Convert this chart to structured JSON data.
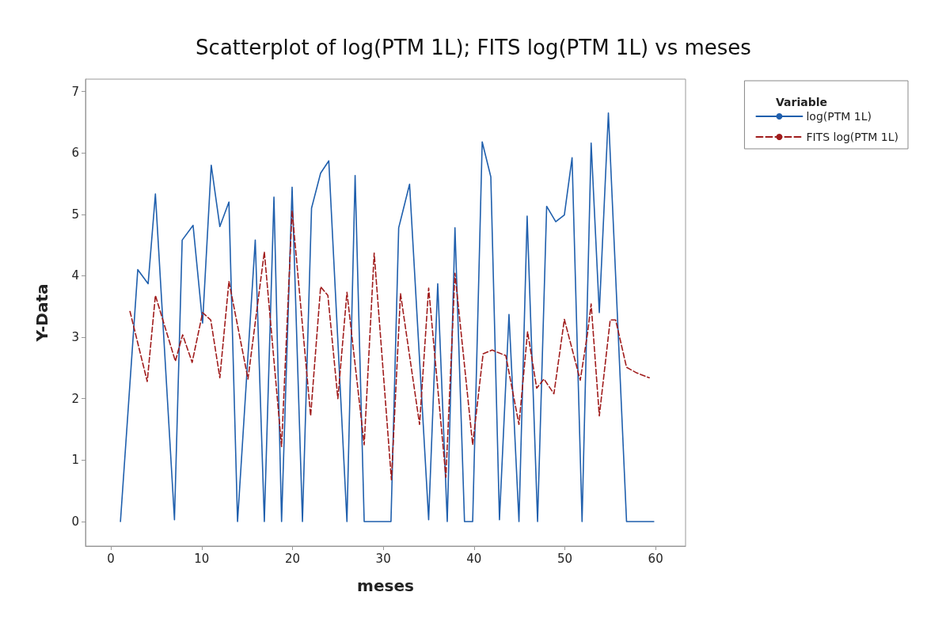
{
  "chart_data": {
    "type": "line",
    "title": "Scatterplot of log(PTM 1L); FITS log(PTM 1L) vs meses",
    "xlabel": "meses",
    "ylabel": "Y-Data",
    "legend_title": "Variable",
    "legend": "top right",
    "grid": false,
    "marker": "none",
    "xlim": [
      -2.8,
      63.3
    ],
    "ylim": [
      -0.4,
      7.2
    ],
    "xticks": [
      0,
      10,
      20,
      30,
      40,
      50,
      60
    ],
    "yticks": [
      0,
      1,
      2,
      3,
      4,
      5,
      6,
      7
    ],
    "series": [
      {
        "name": "log(PTM 1L)",
        "color": "#1f5fad",
        "line_style": "solid",
        "x": [
          1.05,
          2.96,
          4.1,
          4.9,
          7.0,
          7.85,
          9.05,
          10.1,
          11.05,
          12.0,
          13.0,
          13.95,
          15.9,
          16.9,
          17.96,
          18.8,
          19.96,
          21.1,
          22.1,
          23.1,
          24.0,
          26.0,
          26.9,
          27.9,
          30.85,
          31.7,
          32.9,
          35.0,
          36.0,
          37.05,
          37.9,
          38.95,
          39.85,
          40.9,
          41.85,
          42.8,
          43.85,
          44.95,
          45.85,
          47.0,
          48.0,
          49.0,
          49.95,
          50.8,
          51.9,
          52.9,
          53.8,
          54.8,
          56.8,
          59.8
        ],
        "values": [
          0,
          4.1,
          3.87,
          5.33,
          0.03,
          4.58,
          4.82,
          3.23,
          5.8,
          4.8,
          5.2,
          0,
          4.58,
          0,
          5.28,
          0,
          5.44,
          0,
          5.1,
          5.67,
          5.87,
          0,
          5.63,
          0,
          0,
          4.78,
          5.49,
          0.03,
          3.87,
          0,
          4.78,
          0,
          0,
          6.18,
          5.61,
          0.03,
          3.37,
          0,
          4.97,
          0,
          5.13,
          4.88,
          4.99,
          5.92,
          0,
          6.16,
          3.4,
          6.65,
          0,
          0
        ]
      },
      {
        "name": "FITS log(PTM 1L)",
        "color": "#a01c1c",
        "line_style": "dashed",
        "x": [
          2.1,
          4.0,
          4.9,
          7.1,
          7.9,
          8.95,
          10.1,
          11.0,
          12.0,
          13.0,
          15.1,
          16.9,
          18.8,
          19.96,
          22.0,
          23.1,
          23.9,
          25.0,
          26.0,
          27.9,
          29.0,
          30.9,
          31.9,
          34.0,
          35.0,
          36.9,
          37.9,
          39.85,
          41.0,
          42.0,
          43.5,
          44.95,
          45.9,
          46.9,
          47.7,
          48.8,
          49.95,
          51.7,
          52.5,
          52.9,
          53.8,
          55.0,
          55.6,
          56.8,
          57.9,
          59.3
        ],
        "values": [
          3.42,
          2.28,
          3.68,
          2.61,
          3.04,
          2.59,
          3.4,
          3.28,
          2.34,
          3.91,
          2.32,
          4.39,
          1.22,
          5.06,
          1.72,
          3.82,
          3.68,
          2.0,
          3.73,
          1.25,
          4.37,
          0.68,
          3.71,
          1.58,
          3.8,
          0.72,
          4.04,
          1.25,
          2.73,
          2.79,
          2.7,
          1.58,
          3.09,
          2.17,
          2.32,
          2.08,
          3.29,
          2.3,
          3.06,
          3.54,
          1.72,
          3.28,
          3.28,
          2.51,
          2.42,
          2.34
        ]
      }
    ]
  }
}
